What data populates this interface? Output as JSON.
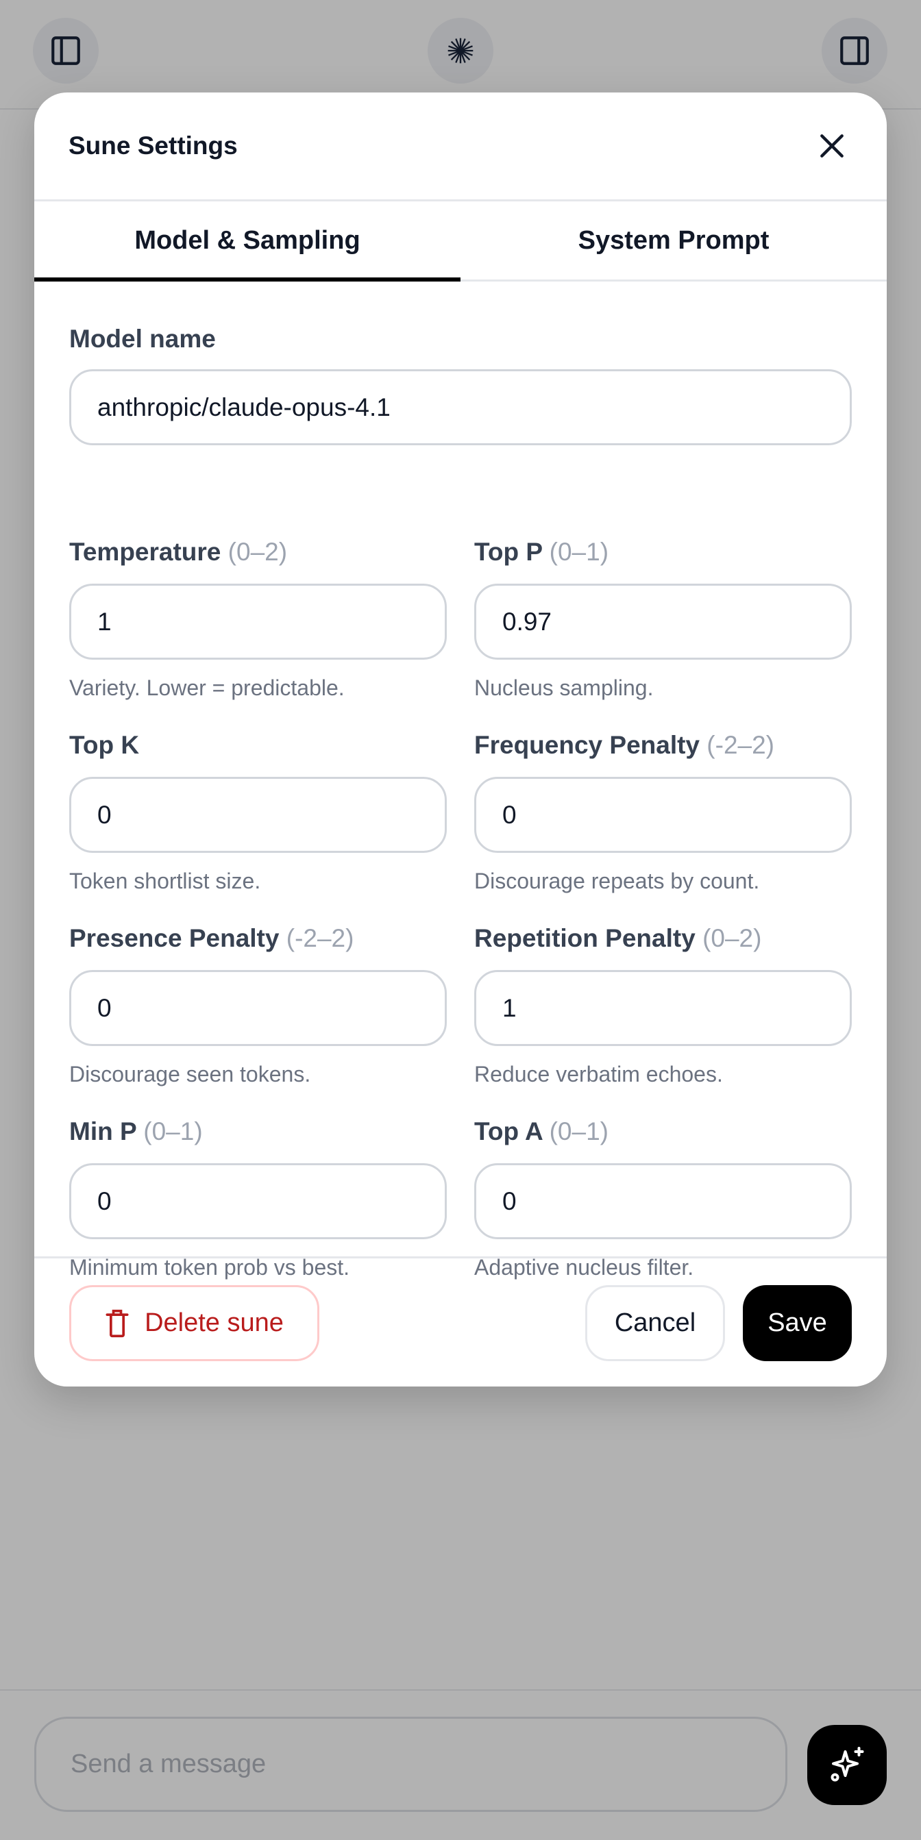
{
  "topbar": {
    "left_icon": "sidebar-left-icon",
    "center_icon": "sunburst-logo-icon",
    "right_icon": "sidebar-right-icon"
  },
  "modal": {
    "title": "Sune Settings",
    "tabs": [
      {
        "label": "Model & Sampling",
        "active": true
      },
      {
        "label": "System Prompt",
        "active": false
      }
    ],
    "model": {
      "label": "Model name",
      "value": "anthropic/claude-opus-4.1"
    },
    "fields": [
      {
        "label": "Temperature",
        "range": "(0–2)",
        "value": "1",
        "help": "Variety. Lower = predictable."
      },
      {
        "label": "Top P",
        "range": "(0–1)",
        "value": "0.97",
        "help": "Nucleus sampling."
      },
      {
        "label": "Top K",
        "range": "",
        "value": "0",
        "help": "Token shortlist size."
      },
      {
        "label": "Frequency Penalty",
        "range": "(-2–2)",
        "value": "0",
        "help": "Discourage repeats by count."
      },
      {
        "label": "Presence Penalty",
        "range": "(-2–2)",
        "value": "0",
        "help": "Discourage seen tokens."
      },
      {
        "label": "Repetition Penalty",
        "range": "(0–2)",
        "value": "1",
        "help": "Reduce verbatim echoes."
      },
      {
        "label": "Min P",
        "range": "(0–1)",
        "value": "0",
        "help": "Minimum token prob vs best."
      },
      {
        "label": "Top A",
        "range": "(0–1)",
        "value": "0",
        "help": "Adaptive nucleus filter."
      }
    ],
    "footer": {
      "delete_label": "Delete sune",
      "cancel_label": "Cancel",
      "save_label": "Save"
    },
    "colors": {
      "danger": "#b91c1c",
      "primary": "#000000"
    }
  },
  "composer": {
    "placeholder": "Send a message",
    "action_icon": "sparkles-icon"
  }
}
